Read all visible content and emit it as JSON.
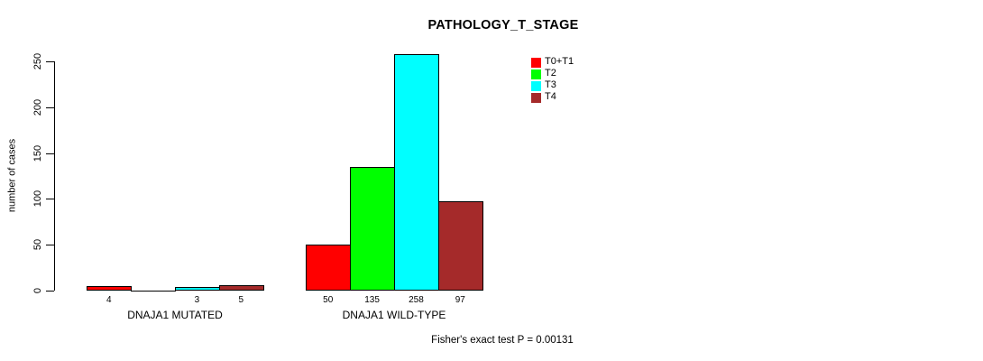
{
  "chart_data": {
    "type": "bar",
    "title": "PATHOLOGY_T_STAGE",
    "ylabel": "number of cases",
    "xlabel": "",
    "ylim": [
      0,
      250
    ],
    "yticks": [
      0,
      50,
      100,
      150,
      200,
      250
    ],
    "grid": false,
    "legend_position": "top-right-inside",
    "categories": [
      "DNAJA1 MUTATED",
      "DNAJA1 WILD-TYPE"
    ],
    "series": [
      {
        "name": "T0+T1",
        "color": "#FF0000",
        "values": [
          4,
          50
        ]
      },
      {
        "name": "T2",
        "color": "#00FF00",
        "values": [
          0,
          135
        ]
      },
      {
        "name": "T3",
        "color": "#00FFFF",
        "values": [
          3,
          258
        ]
      },
      {
        "name": "T4",
        "color": "#A52A2A",
        "values": [
          5,
          97
        ]
      }
    ],
    "bar_value_labels": [
      [
        "4",
        null,
        "3",
        "5"
      ],
      [
        "50",
        "135",
        "258",
        "97"
      ]
    ],
    "footer": "Fisher's exact test P = 0.00131"
  },
  "colors": {
    "axis": "#000000",
    "text": "#000000",
    "background": "#FFFFFF"
  }
}
